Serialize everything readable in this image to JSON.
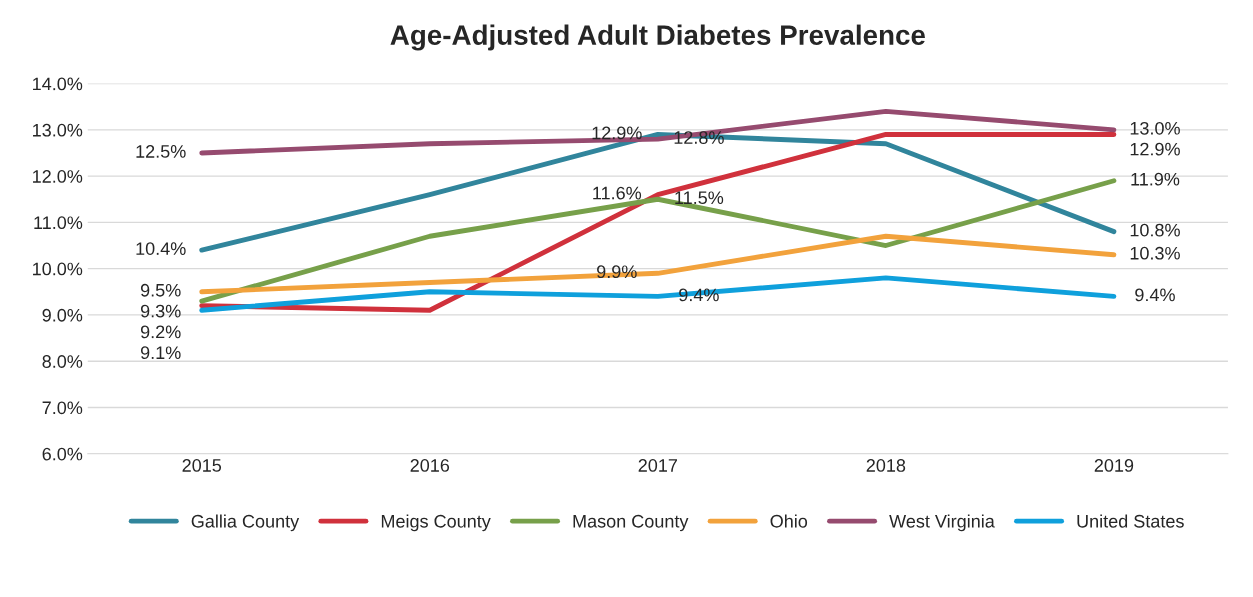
{
  "chart_data": {
    "type": "line",
    "title": "Age-Adjusted Adult Diabetes Prevalence",
    "categories": [
      "2015",
      "2016",
      "2017",
      "2018",
      "2019"
    ],
    "series": [
      {
        "name": "Gallia County",
        "color": "#31859c",
        "values": [
          10.4,
          11.6,
          12.9,
          12.7,
          10.8
        ],
        "value_labels": [
          "10.4%",
          null,
          "12.9%",
          null,
          "10.8%"
        ]
      },
      {
        "name": "Meigs County",
        "color": "#d0313c",
        "values": [
          9.2,
          9.1,
          11.6,
          12.9,
          12.9
        ],
        "value_labels": [
          "9.2%",
          null,
          "11.6%",
          null,
          "12.9%"
        ]
      },
      {
        "name": "Mason County",
        "color": "#77a04a",
        "values": [
          9.3,
          10.7,
          11.5,
          10.5,
          11.9
        ],
        "value_labels": [
          "9.3%",
          null,
          "11.5%",
          null,
          "11.9%"
        ]
      },
      {
        "name": "Ohio",
        "color": "#f2a23c",
        "values": [
          9.5,
          9.7,
          9.9,
          10.7,
          10.3
        ],
        "value_labels": [
          "9.5%",
          null,
          "9.9%",
          null,
          "10.3%"
        ]
      },
      {
        "name": "West Virginia",
        "color": "#964b6f",
        "values": [
          12.5,
          12.7,
          12.8,
          13.4,
          13.0
        ],
        "value_labels": [
          "12.5%",
          null,
          "12.8%",
          null,
          "13.0%"
        ]
      },
      {
        "name": "United States",
        "color": "#0fa0dc",
        "values": [
          9.1,
          9.5,
          9.4,
          9.8,
          9.4
        ],
        "value_labels": [
          "9.1%",
          null,
          "9.4%",
          null,
          "9.4%"
        ]
      }
    ],
    "ylim": [
      6.0,
      14.0
    ],
    "yticks": [
      {
        "value": 6.0,
        "label": "6.0%"
      },
      {
        "value": 7.0,
        "label": "7.0%"
      },
      {
        "value": 8.0,
        "label": "8.0%"
      },
      {
        "value": 9.0,
        "label": "9.0%"
      },
      {
        "value": 10.0,
        "label": "10.0%"
      },
      {
        "value": 11.0,
        "label": "11.0%"
      },
      {
        "value": 12.0,
        "label": "12.0%"
      },
      {
        "value": 13.0,
        "label": "13.0%"
      },
      {
        "value": 14.0,
        "label": "14.0%"
      }
    ],
    "grid": "y",
    "legend": "bottom",
    "marker": "none",
    "line_style": "solid"
  }
}
